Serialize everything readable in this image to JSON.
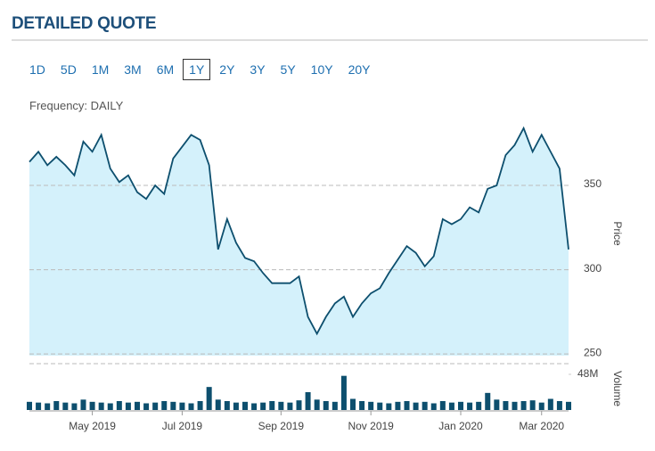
{
  "header": {
    "title": "DETAILED QUOTE"
  },
  "ranges": [
    "1D",
    "5D",
    "1M",
    "3M",
    "6M",
    "1Y",
    "2Y",
    "3Y",
    "5Y",
    "10Y",
    "20Y"
  ],
  "selected_range": 5,
  "frequency": "Frequency: DAILY",
  "chart_data": {
    "type": "line",
    "categories": [
      null,
      null,
      null,
      null,
      null,
      null,
      null,
      "May 2019",
      null,
      null,
      null,
      null,
      null,
      null,
      null,
      null,
      null,
      "Jul 2019",
      null,
      null,
      null,
      null,
      null,
      null,
      null,
      null,
      null,
      null,
      "Sep 2019",
      null,
      null,
      null,
      null,
      null,
      null,
      null,
      null,
      null,
      "Nov 2019",
      null,
      null,
      null,
      null,
      null,
      null,
      null,
      null,
      null,
      "Jan 2020",
      null,
      null,
      null,
      null,
      null,
      null,
      null,
      null,
      "Mar 2020",
      null,
      null,
      null
    ],
    "series": [
      {
        "name": "Price",
        "color": "#0d4f6e",
        "fill": "#d4f1fb",
        "values": [
          364,
          370,
          362,
          367,
          362,
          356,
          376,
          370,
          380,
          360,
          352,
          356,
          346,
          342,
          350,
          345,
          366,
          373,
          380,
          377,
          362,
          312,
          330,
          316,
          307,
          305,
          298,
          292,
          292,
          292,
          296,
          272,
          262,
          272,
          280,
          284,
          272,
          280,
          286,
          289,
          298,
          306,
          314,
          310,
          302,
          308,
          330,
          327,
          330,
          337,
          334,
          348,
          350,
          368,
          374,
          384,
          370,
          380,
          370,
          360,
          312
        ]
      },
      {
        "name": "Volume",
        "color": "#0d4f6e",
        "axis": "y2",
        "values": [
          11,
          10,
          9,
          12,
          10,
          9,
          14,
          11,
          10,
          9,
          12,
          10,
          11,
          9,
          10,
          12,
          11,
          10,
          9,
          12,
          31,
          14,
          12,
          10,
          11,
          9,
          10,
          12,
          11,
          10,
          13,
          24,
          14,
          12,
          11,
          46,
          15,
          12,
          11,
          10,
          9,
          11,
          12,
          10,
          11,
          9,
          12,
          10,
          11,
          10,
          11,
          23,
          14,
          12,
          11,
          12,
          13,
          10,
          15,
          12,
          11
        ]
      }
    ],
    "ylim": [
      249,
      386
    ],
    "yticks": [
      250,
      300,
      350
    ],
    "y2lim": [
      0,
      48
    ],
    "y2ticks": [
      {
        "value": 48,
        "label": "48M"
      }
    ],
    "y_label": "Price",
    "y2_label": "Volume",
    "grid": true
  }
}
